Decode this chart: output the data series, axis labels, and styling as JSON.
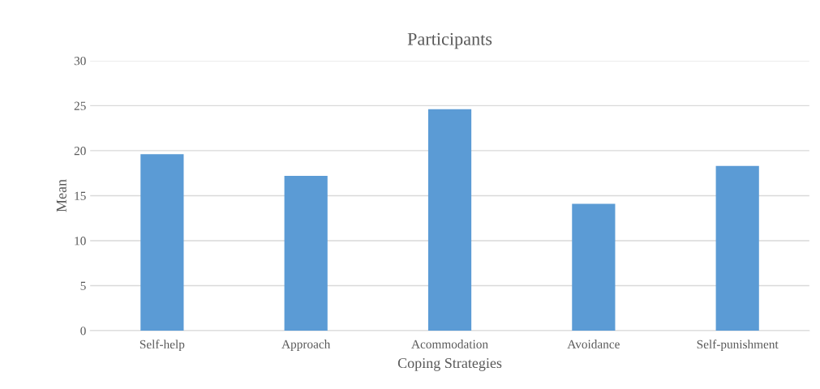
{
  "chart_data": {
    "type": "bar",
    "title": "Participants",
    "xlabel": "Coping Strategies",
    "ylabel": "Mean",
    "categories": [
      "Self-help",
      "Approach",
      "Acommodation",
      "Avoidance",
      "Self-punishment"
    ],
    "values": [
      19.6,
      17.2,
      24.6,
      14.1,
      18.3
    ],
    "color": "#5b9bd5",
    "ylim": [
      0,
      30
    ],
    "yticks": [
      0,
      5,
      10,
      15,
      20,
      25,
      30
    ],
    "grid": "y"
  }
}
